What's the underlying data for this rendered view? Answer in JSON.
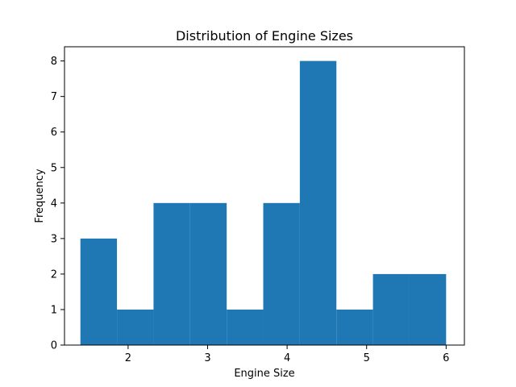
{
  "chart_data": {
    "type": "bar",
    "title": "Distribution of Engine Sizes",
    "xlabel": "Engine Size",
    "ylabel": "Frequency",
    "xlim": [
      1.2,
      6.23
    ],
    "ylim": [
      0,
      8.4
    ],
    "x_ticks": [
      2,
      3,
      4,
      5,
      6
    ],
    "y_ticks": [
      0,
      1,
      2,
      3,
      4,
      5,
      6,
      7,
      8
    ],
    "bin_edges": [
      1.4,
      1.86,
      2.32,
      2.78,
      3.24,
      3.7,
      4.16,
      4.62,
      5.08,
      5.54,
      6.0
    ],
    "values": [
      3,
      1,
      4,
      4,
      1,
      4,
      8,
      1,
      2,
      2
    ],
    "color": "#1f77b4"
  }
}
